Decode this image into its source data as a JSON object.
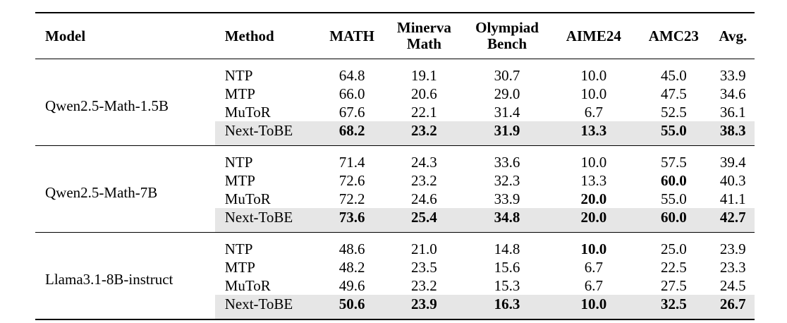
{
  "table": {
    "headers": {
      "model": "Model",
      "method": "Method",
      "math": "MATH",
      "minerva_1": "Minerva",
      "minerva_2": "Math",
      "olympiad_1": "Olympiad",
      "olympiad_2": "Bench",
      "aime": "AIME24",
      "amc": "AMC23",
      "avg": "Avg."
    },
    "groups": [
      {
        "model": "Qwen2.5-Math-1.5B",
        "rows": [
          {
            "method": "NTP",
            "values": [
              "64.8",
              "19.1",
              "30.7",
              "10.0",
              "45.0",
              "33.9"
            ]
          },
          {
            "method": "MTP",
            "values": [
              "66.0",
              "20.6",
              "29.0",
              "10.0",
              "47.5",
              "34.6"
            ]
          },
          {
            "method": "MuToR",
            "values": [
              "67.6",
              "22.1",
              "31.4",
              "6.7",
              "52.5",
              "36.1"
            ]
          },
          {
            "method": "Next-ToBE",
            "values": [
              "68.2",
              "23.2",
              "31.9",
              "13.3",
              "55.0",
              "38.3"
            ]
          }
        ]
      },
      {
        "model": "Qwen2.5-Math-7B",
        "rows": [
          {
            "method": "NTP",
            "values": [
              "71.4",
              "24.3",
              "33.6",
              "10.0",
              "57.5",
              "39.4"
            ]
          },
          {
            "method": "MTP",
            "values": [
              "72.6",
              "23.2",
              "32.3",
              "13.3",
              "60.0",
              "40.3"
            ]
          },
          {
            "method": "MuToR",
            "values": [
              "72.2",
              "24.6",
              "33.9",
              "20.0",
              "55.0",
              "41.1"
            ]
          },
          {
            "method": "Next-ToBE",
            "values": [
              "73.6",
              "25.4",
              "34.8",
              "20.0",
              "60.0",
              "42.7"
            ]
          }
        ]
      },
      {
        "model": "Llama3.1-8B-instruct",
        "rows": [
          {
            "method": "NTP",
            "values": [
              "48.6",
              "21.0",
              "14.8",
              "10.0",
              "25.0",
              "23.9"
            ]
          },
          {
            "method": "MTP",
            "values": [
              "48.2",
              "23.5",
              "15.6",
              "6.7",
              "22.5",
              "23.3"
            ]
          },
          {
            "method": "MuToR",
            "values": [
              "49.6",
              "23.2",
              "15.3",
              "6.7",
              "27.5",
              "24.5"
            ]
          },
          {
            "method": "Next-ToBE",
            "values": [
              "50.6",
              "23.9",
              "16.3",
              "10.0",
              "32.5",
              "26.7"
            ]
          }
        ]
      }
    ]
  }
}
